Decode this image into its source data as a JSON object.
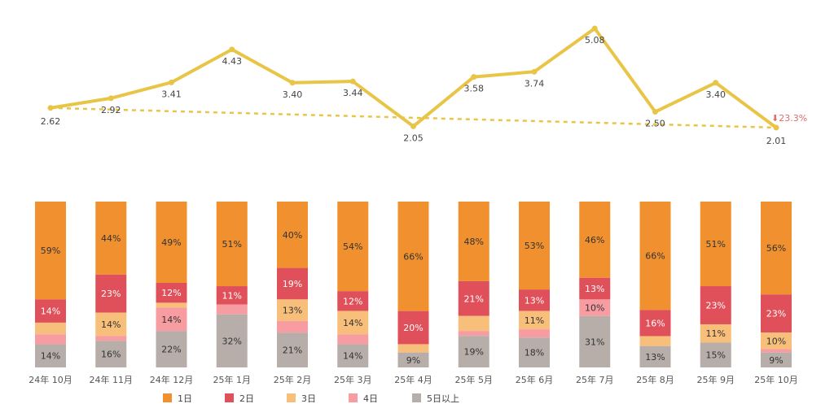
{
  "chart_data": [
    {
      "type": "line",
      "categories": [
        "24年 10月",
        "24年 11月",
        "24年 12月",
        "25年 1月",
        "25年 2月",
        "25年 3月",
        "25年 4月",
        "25年 5月",
        "25年 6月",
        "25年 7月",
        "25年 8月",
        "25年 9月",
        "25年 10月"
      ],
      "values": [
        2.62,
        2.92,
        3.41,
        4.43,
        3.4,
        3.44,
        2.05,
        3.58,
        3.74,
        5.08,
        2.5,
        3.4,
        2.01
      ],
      "labels": [
        "2.62",
        "2.92",
        "3.41",
        "4.43",
        "3.40",
        "3.44",
        "2.05",
        "3.58",
        "3.74",
        "5.08",
        "2.50",
        "3.40",
        "2.01"
      ],
      "trend": {
        "start": 2.62,
        "end": 2.01,
        "style": "dashed"
      },
      "change_annotation": "⬇23.3%",
      "ylim": [
        1.6,
        5.3
      ],
      "line_color": "#e8c547"
    },
    {
      "type": "bar",
      "stacked": true,
      "normalized": true,
      "categories": [
        "24年 10月",
        "24年 11月",
        "24年 12月",
        "25年 1月",
        "25年 2月",
        "25年 3月",
        "25年 4月",
        "25年 5月",
        "25年 6月",
        "25年 7月",
        "25年 8月",
        "25年 9月",
        "25年 10月"
      ],
      "series": [
        {
          "name": "1日",
          "color": "#f0902e",
          "values": [
            59,
            44,
            49,
            51,
            40,
            54,
            66,
            48,
            53,
            46,
            66,
            51,
            56
          ],
          "labels": [
            "59%",
            "44%",
            "49%",
            "51%",
            "40%",
            "54%",
            "66%",
            "48%",
            "53%",
            "46%",
            "66%",
            "51%",
            "56%"
          ]
        },
        {
          "name": "2日",
          "color": "#e0505a",
          "values": [
            14,
            23,
            12,
            11,
            19,
            12,
            20,
            21,
            13,
            13,
            16,
            23,
            23
          ],
          "labels": [
            "14%",
            "23%",
            "12%",
            "11%",
            "19%",
            "12%",
            "20%",
            "21%",
            "13%",
            "13%",
            "16%",
            "23%",
            "23%"
          ]
        },
        {
          "name": "3日",
          "color": "#f8bf7a",
          "values": [
            7,
            14,
            3,
            0,
            13,
            14,
            5,
            9,
            11,
            0,
            6,
            11,
            10
          ],
          "labels": [
            "",
            "14%",
            "",
            "",
            "13%",
            "14%",
            "",
            "",
            "11%",
            "",
            "",
            "11%",
            "10%"
          ]
        },
        {
          "name": "4日",
          "color": "#f79da2",
          "values": [
            6,
            3,
            14,
            6,
            7,
            6,
            0,
            3,
            5,
            10,
            0,
            0,
            2
          ],
          "labels": [
            "",
            "",
            "14%",
            "",
            "",
            "",
            "",
            "",
            "",
            "10%",
            "",
            "",
            ""
          ]
        },
        {
          "name": "5日以上",
          "color": "#b8aea9",
          "values": [
            14,
            16,
            22,
            32,
            21,
            14,
            9,
            19,
            18,
            31,
            13,
            15,
            9
          ],
          "labels": [
            "14%",
            "16%",
            "22%",
            "32%",
            "21%",
            "14%",
            "9%",
            "19%",
            "18%",
            "31%",
            "13%",
            "15%",
            "9%"
          ]
        }
      ],
      "legend": [
        "1日",
        "2日",
        "3日",
        "4日",
        "5日以上"
      ],
      "legend_position": "bottom"
    }
  ]
}
